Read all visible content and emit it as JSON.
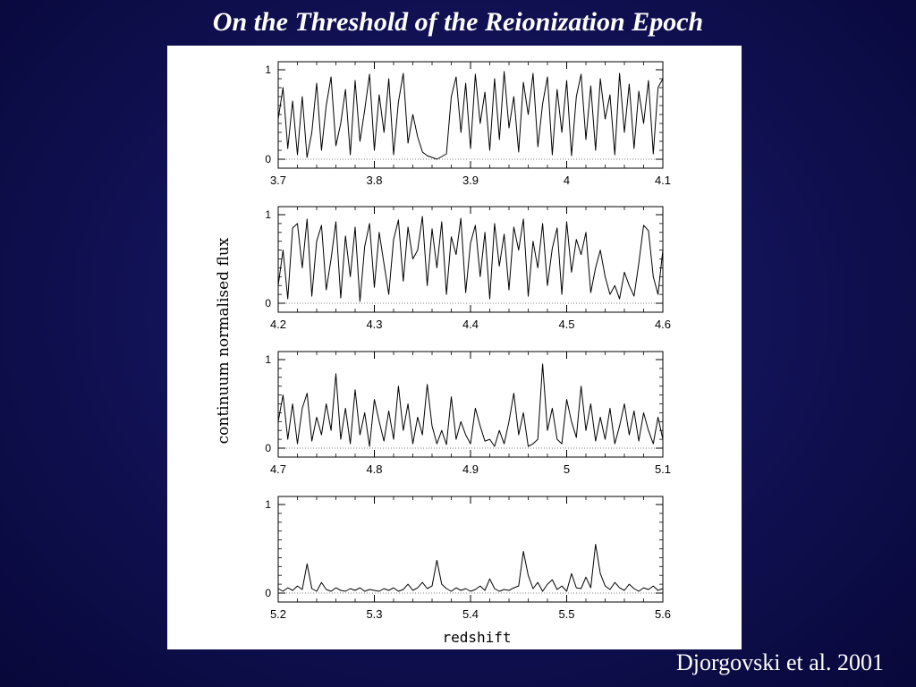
{
  "slide": {
    "title": "On the Threshold of the Reionization Epoch",
    "citation": "Djorgovski et al. 2001"
  },
  "colors": {
    "background": "#10105a",
    "panel": "#ffffff",
    "ink": "#000000"
  },
  "chart_data": {
    "type": "line",
    "ylabel": "continuum normalised flux",
    "xlabel": "redshift",
    "grid": false,
    "panels": [
      {
        "xlim": [
          3.7,
          4.1
        ],
        "ylim": [
          0,
          1
        ],
        "x_ticks": [
          "3.7",
          "3.8",
          "3.9",
          "4",
          "4.1"
        ],
        "y_ticks": [
          "1",
          "0"
        ],
        "series": [
          {
            "x": [
              3.7,
              3.705,
              3.71,
              3.715,
              3.72,
              3.725,
              3.73,
              3.735,
              3.74,
              3.745,
              3.75,
              3.755,
              3.76,
              3.765,
              3.77,
              3.775,
              3.78,
              3.785,
              3.79,
              3.795,
              3.8,
              3.805,
              3.81,
              3.815,
              3.82,
              3.825,
              3.83,
              3.835,
              3.84,
              3.845,
              3.85,
              3.855,
              3.86,
              3.865,
              3.87,
              3.875,
              3.88,
              3.885,
              3.89,
              3.895,
              3.9,
              3.905,
              3.91,
              3.915,
              3.92,
              3.925,
              3.93,
              3.935,
              3.94,
              3.945,
              3.95,
              3.955,
              3.96,
              3.965,
              3.97,
              3.975,
              3.98,
              3.985,
              3.99,
              3.995,
              4.0,
              4.005,
              4.01,
              4.015,
              4.02,
              4.025,
              4.03,
              4.035,
              4.04,
              4.045,
              4.05,
              4.055,
              4.06,
              4.065,
              4.07,
              4.075,
              4.08,
              4.085,
              4.09,
              4.095,
              4.1
            ],
            "y": [
              0.45,
              0.8,
              0.12,
              0.65,
              0.05,
              0.7,
              0.02,
              0.3,
              0.85,
              0.1,
              0.6,
              0.92,
              0.15,
              0.4,
              0.78,
              0.05,
              0.88,
              0.2,
              0.55,
              0.95,
              0.1,
              0.72,
              0.3,
              0.9,
              0.05,
              0.64,
              0.96,
              0.18,
              0.5,
              0.25,
              0.08,
              0.04,
              0.02,
              0.0,
              0.03,
              0.06,
              0.7,
              0.92,
              0.3,
              0.85,
              0.12,
              0.95,
              0.4,
              0.75,
              0.1,
              0.9,
              0.22,
              0.98,
              0.35,
              0.7,
              0.08,
              0.86,
              0.5,
              0.96,
              0.14,
              0.62,
              0.92,
              0.05,
              0.78,
              0.3,
              0.88,
              0.04,
              0.7,
              0.95,
              0.22,
              0.82,
              0.1,
              0.9,
              0.45,
              0.72,
              0.05,
              0.96,
              0.3,
              0.84,
              0.12,
              0.76,
              0.4,
              0.88,
              0.06,
              0.8,
              0.9
            ]
          }
        ]
      },
      {
        "xlim": [
          4.2,
          4.6
        ],
        "ylim": [
          0,
          1
        ],
        "x_ticks": [
          "4.2",
          "4.3",
          "4.4",
          "4.5",
          "4.6"
        ],
        "y_ticks": [
          "1",
          "0"
        ],
        "series": [
          {
            "x": [
              4.2,
              4.205,
              4.21,
              4.215,
              4.22,
              4.225,
              4.23,
              4.235,
              4.24,
              4.245,
              4.25,
              4.255,
              4.26,
              4.265,
              4.27,
              4.275,
              4.28,
              4.285,
              4.29,
              4.295,
              4.3,
              4.305,
              4.31,
              4.315,
              4.32,
              4.325,
              4.33,
              4.335,
              4.34,
              4.345,
              4.35,
              4.355,
              4.36,
              4.365,
              4.37,
              4.375,
              4.38,
              4.385,
              4.39,
              4.395,
              4.4,
              4.405,
              4.41,
              4.415,
              4.42,
              4.425,
              4.43,
              4.435,
              4.44,
              4.445,
              4.45,
              4.455,
              4.46,
              4.465,
              4.47,
              4.475,
              4.48,
              4.485,
              4.49,
              4.495,
              4.5,
              4.505,
              4.51,
              4.515,
              4.52,
              4.525,
              4.53,
              4.535,
              4.54,
              4.545,
              4.55,
              4.555,
              4.56,
              4.565,
              4.57,
              4.575,
              4.58,
              4.585,
              4.59,
              4.595,
              4.6
            ],
            "y": [
              0.2,
              0.6,
              0.05,
              0.85,
              0.9,
              0.4,
              0.95,
              0.08,
              0.7,
              0.88,
              0.15,
              0.5,
              0.92,
              0.06,
              0.76,
              0.3,
              0.86,
              0.02,
              0.64,
              0.9,
              0.18,
              0.8,
              0.45,
              0.1,
              0.72,
              0.94,
              0.25,
              0.86,
              0.5,
              0.6,
              0.98,
              0.2,
              0.84,
              0.4,
              0.92,
              0.1,
              0.75,
              0.55,
              0.96,
              0.12,
              0.68,
              0.88,
              0.3,
              0.8,
              0.05,
              0.9,
              0.42,
              0.78,
              0.15,
              0.86,
              0.6,
              0.95,
              0.08,
              0.7,
              0.4,
              0.9,
              0.2,
              0.62,
              0.85,
              0.1,
              0.92,
              0.35,
              0.72,
              0.55,
              0.8,
              0.12,
              0.4,
              0.6,
              0.3,
              0.1,
              0.2,
              0.05,
              0.35,
              0.2,
              0.08,
              0.45,
              0.88,
              0.82,
              0.3,
              0.1,
              0.6
            ]
          }
        ]
      },
      {
        "xlim": [
          4.7,
          5.1
        ],
        "ylim": [
          0,
          1
        ],
        "x_ticks": [
          "4.7",
          "4.8",
          "4.9",
          "5",
          "5.1"
        ],
        "y_ticks": [
          "1",
          "0"
        ],
        "series": [
          {
            "x": [
              4.7,
              4.705,
              4.71,
              4.715,
              4.72,
              4.725,
              4.73,
              4.735,
              4.74,
              4.745,
              4.75,
              4.755,
              4.76,
              4.765,
              4.77,
              4.775,
              4.78,
              4.785,
              4.79,
              4.795,
              4.8,
              4.805,
              4.81,
              4.815,
              4.82,
              4.825,
              4.83,
              4.835,
              4.84,
              4.845,
              4.85,
              4.855,
              4.86,
              4.865,
              4.87,
              4.875,
              4.88,
              4.885,
              4.89,
              4.895,
              4.9,
              4.905,
              4.91,
              4.915,
              4.92,
              4.925,
              4.93,
              4.935,
              4.94,
              4.945,
              4.95,
              4.955,
              4.96,
              4.965,
              4.97,
              4.975,
              4.98,
              4.985,
              4.99,
              4.995,
              5.0,
              5.005,
              5.01,
              5.015,
              5.02,
              5.025,
              5.03,
              5.035,
              5.04,
              5.045,
              5.05,
              5.055,
              5.06,
              5.065,
              5.07,
              5.075,
              5.08,
              5.085,
              5.09,
              5.095,
              5.1
            ],
            "y": [
              0.3,
              0.6,
              0.1,
              0.5,
              0.05,
              0.45,
              0.62,
              0.08,
              0.35,
              0.15,
              0.5,
              0.2,
              0.84,
              0.1,
              0.45,
              0.05,
              0.66,
              0.15,
              0.4,
              0.02,
              0.55,
              0.3,
              0.08,
              0.42,
              0.1,
              0.7,
              0.2,
              0.5,
              0.05,
              0.35,
              0.15,
              0.72,
              0.25,
              0.05,
              0.2,
              0.04,
              0.58,
              0.1,
              0.3,
              0.15,
              0.05,
              0.45,
              0.25,
              0.08,
              0.1,
              0.02,
              0.2,
              0.05,
              0.3,
              0.62,
              0.15,
              0.4,
              0.02,
              0.05,
              0.1,
              0.95,
              0.2,
              0.45,
              0.1,
              0.05,
              0.55,
              0.3,
              0.12,
              0.7,
              0.2,
              0.5,
              0.08,
              0.35,
              0.1,
              0.45,
              0.05,
              0.25,
              0.5,
              0.15,
              0.42,
              0.08,
              0.4,
              0.2,
              0.05,
              0.35,
              0.1
            ]
          }
        ]
      },
      {
        "xlim": [
          5.2,
          5.6
        ],
        "ylim": [
          0,
          1
        ],
        "x_ticks": [
          "5.2",
          "5.3",
          "5.4",
          "5.5",
          "5.6"
        ],
        "y_ticks": [
          "1",
          "0"
        ],
        "series": [
          {
            "x": [
              5.2,
              5.205,
              5.21,
              5.215,
              5.22,
              5.225,
              5.23,
              5.235,
              5.24,
              5.245,
              5.25,
              5.255,
              5.26,
              5.265,
              5.27,
              5.275,
              5.28,
              5.285,
              5.29,
              5.295,
              5.3,
              5.305,
              5.31,
              5.315,
              5.32,
              5.325,
              5.33,
              5.335,
              5.34,
              5.345,
              5.35,
              5.355,
              5.36,
              5.365,
              5.37,
              5.375,
              5.38,
              5.385,
              5.39,
              5.395,
              5.4,
              5.405,
              5.41,
              5.415,
              5.42,
              5.425,
              5.43,
              5.435,
              5.44,
              5.445,
              5.45,
              5.455,
              5.46,
              5.465,
              5.47,
              5.475,
              5.48,
              5.485,
              5.49,
              5.495,
              5.5,
              5.505,
              5.51,
              5.515,
              5.52,
              5.525,
              5.53,
              5.535,
              5.54,
              5.545,
              5.55,
              5.555,
              5.56,
              5.565,
              5.57,
              5.575,
              5.58,
              5.585,
              5.59,
              5.595,
              5.6
            ],
            "y": [
              0.05,
              0.02,
              0.06,
              0.03,
              0.08,
              0.04,
              0.33,
              0.05,
              0.02,
              0.12,
              0.04,
              0.02,
              0.06,
              0.03,
              0.02,
              0.05,
              0.03,
              0.06,
              0.02,
              0.04,
              0.03,
              0.02,
              0.05,
              0.03,
              0.06,
              0.02,
              0.04,
              0.1,
              0.03,
              0.06,
              0.12,
              0.05,
              0.08,
              0.37,
              0.1,
              0.05,
              0.02,
              0.06,
              0.03,
              0.05,
              0.02,
              0.04,
              0.08,
              0.03,
              0.16,
              0.05,
              0.02,
              0.04,
              0.03,
              0.06,
              0.08,
              0.47,
              0.2,
              0.05,
              0.12,
              0.02,
              0.1,
              0.15,
              0.04,
              0.08,
              0.02,
              0.22,
              0.06,
              0.05,
              0.18,
              0.06,
              0.55,
              0.22,
              0.08,
              0.04,
              0.12,
              0.06,
              0.03,
              0.1,
              0.05,
              0.02,
              0.06,
              0.04,
              0.08,
              0.03,
              0.05
            ]
          }
        ]
      }
    ]
  }
}
